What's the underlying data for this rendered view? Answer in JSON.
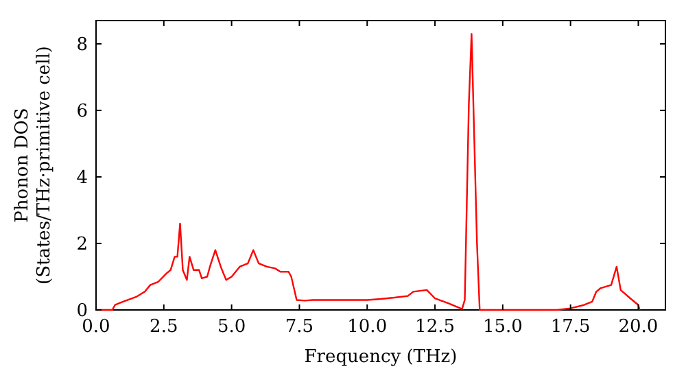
{
  "chart_data": {
    "type": "line",
    "xlabel": "Frequency (THz)",
    "ylabel": "Phonon DOS\n(States/THz·primitive cell)",
    "xlim": [
      0,
      21
    ],
    "ylim": [
      0,
      8.7
    ],
    "xticks": [
      {
        "value": 0,
        "label": "0.0"
      },
      {
        "value": 2.5,
        "label": "2.5"
      },
      {
        "value": 5,
        "label": "5.0"
      },
      {
        "value": 7.5,
        "label": "7.5"
      },
      {
        "value": 10,
        "label": "10.0"
      },
      {
        "value": 12.5,
        "label": "12.5"
      },
      {
        "value": 15,
        "label": "15.0"
      },
      {
        "value": 17.5,
        "label": "17.5"
      },
      {
        "value": 20,
        "label": "20.0"
      }
    ],
    "yticks": [
      0,
      2,
      4,
      6,
      8
    ],
    "grid": false,
    "marker": "none",
    "line_style": "solid",
    "series": [
      {
        "color": "#ff0000",
        "x": [
          0,
          0.6,
          0.7,
          1.0,
          1.5,
          1.8,
          2.0,
          2.3,
          2.6,
          2.75,
          2.9,
          3.0,
          3.1,
          3.2,
          3.35,
          3.45,
          3.6,
          3.8,
          3.9,
          4.1,
          4.2,
          4.4,
          4.6,
          4.8,
          5.0,
          5.1,
          5.3,
          5.6,
          5.8,
          6.0,
          6.3,
          6.6,
          6.8,
          7.1,
          7.2,
          7.4,
          7.7,
          8,
          9,
          10,
          10.5,
          11,
          11.5,
          11.7,
          12.2,
          12.5,
          13,
          13.5,
          13.6,
          13.75,
          13.85,
          14.05,
          14.15,
          17,
          17.5,
          18.0,
          18.3,
          18.45,
          18.6,
          19.0,
          19.2,
          19.35,
          19.7,
          20.0,
          20.05
        ],
        "values": [
          0,
          0,
          0.15,
          0.25,
          0.4,
          0.55,
          0.75,
          0.85,
          1.1,
          1.2,
          1.6,
          1.6,
          2.6,
          1.2,
          0.9,
          1.6,
          1.2,
          1.2,
          0.95,
          1.0,
          1.3,
          1.8,
          1.3,
          0.9,
          1.0,
          1.1,
          1.3,
          1.4,
          1.8,
          1.4,
          1.3,
          1.25,
          1.15,
          1.15,
          1.0,
          0.3,
          0.28,
          0.3,
          0.3,
          0.3,
          0.33,
          0.37,
          0.42,
          0.55,
          0.6,
          0.35,
          0.2,
          0.03,
          0.3,
          6.2,
          8.3,
          2.0,
          0,
          0,
          0.05,
          0.15,
          0.25,
          0.55,
          0.65,
          0.75,
          1.3,
          0.6,
          0.35,
          0.15,
          0
        ]
      }
    ]
  }
}
